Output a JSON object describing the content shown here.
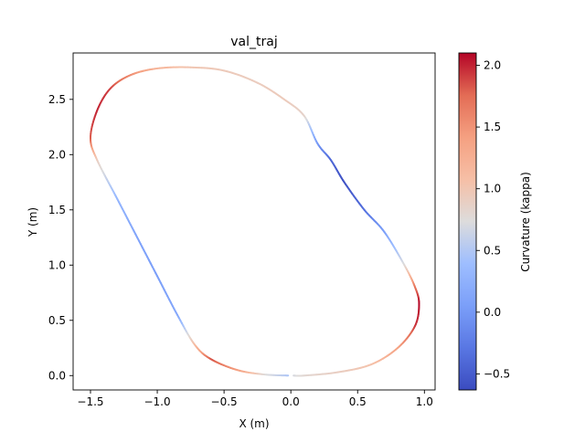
{
  "chart_data": {
    "type": "line",
    "title": "val_traj",
    "xlabel": "X (m)",
    "ylabel": "Y (m)",
    "xlim": [
      -1.63,
      1.08
    ],
    "ylim": [
      -0.13,
      2.92
    ],
    "xticks": [
      -1.5,
      -1.0,
      -0.5,
      0.0,
      0.5,
      1.0
    ],
    "xtick_labels": [
      "−1.5",
      "−1.0",
      "−0.5",
      "0.0",
      "0.5",
      "1.0"
    ],
    "yticks": [
      0.0,
      0.5,
      1.0,
      1.5,
      2.0,
      2.5
    ],
    "ytick_labels": [
      "0.0",
      "0.5",
      "1.0",
      "1.5",
      "2.0",
      "2.5"
    ],
    "grid": false,
    "colormap": "coolwarm",
    "colorbar": {
      "label": "Curvature (kappa)",
      "vmin": -0.63,
      "vmax": 2.1,
      "ticks": [
        -0.5,
        0.0,
        0.5,
        1.0,
        1.5,
        2.0
      ],
      "tick_labels": [
        "−0.5",
        "0.0",
        "0.5",
        "1.0",
        "1.5",
        "2.0"
      ]
    },
    "series": [
      {
        "points": [
          [
            -0.02,
            0.0,
            0.45
          ],
          [
            -0.2,
            0.01,
            0.75
          ],
          [
            -0.4,
            0.05,
            1.4
          ],
          [
            -0.6,
            0.15,
            1.85
          ],
          [
            -0.72,
            0.28,
            1.15
          ],
          [
            -0.85,
            0.55,
            0.15
          ],
          [
            -1.0,
            0.9,
            0.05
          ],
          [
            -1.15,
            1.25,
            0.1
          ],
          [
            -1.3,
            1.6,
            0.3
          ],
          [
            -1.45,
            1.95,
            0.9
          ],
          [
            -1.5,
            2.15,
            1.8
          ],
          [
            -1.45,
            2.4,
            2.0
          ],
          [
            -1.35,
            2.6,
            1.9
          ],
          [
            -1.2,
            2.72,
            1.55
          ],
          [
            -1.0,
            2.78,
            1.2
          ],
          [
            -0.75,
            2.79,
            1.0
          ],
          [
            -0.5,
            2.76,
            0.95
          ],
          [
            -0.25,
            2.65,
            0.92
          ],
          [
            -0.05,
            2.5,
            0.95
          ],
          [
            0.1,
            2.35,
            0.85
          ],
          [
            0.2,
            2.1,
            0.0
          ],
          [
            0.3,
            1.95,
            -0.4
          ],
          [
            0.4,
            1.75,
            -0.6
          ],
          [
            0.55,
            1.5,
            -0.35
          ],
          [
            0.7,
            1.3,
            0.05
          ],
          [
            0.85,
            1.0,
            0.75
          ],
          [
            0.93,
            0.8,
            1.7
          ],
          [
            0.96,
            0.65,
            2.1
          ],
          [
            0.93,
            0.45,
            1.95
          ],
          [
            0.8,
            0.25,
            1.4
          ],
          [
            0.6,
            0.1,
            1.05
          ],
          [
            0.35,
            0.03,
            0.9
          ],
          [
            0.1,
            0.0,
            0.8
          ],
          [
            0.02,
            0.0,
            0.7
          ]
        ]
      }
    ]
  }
}
